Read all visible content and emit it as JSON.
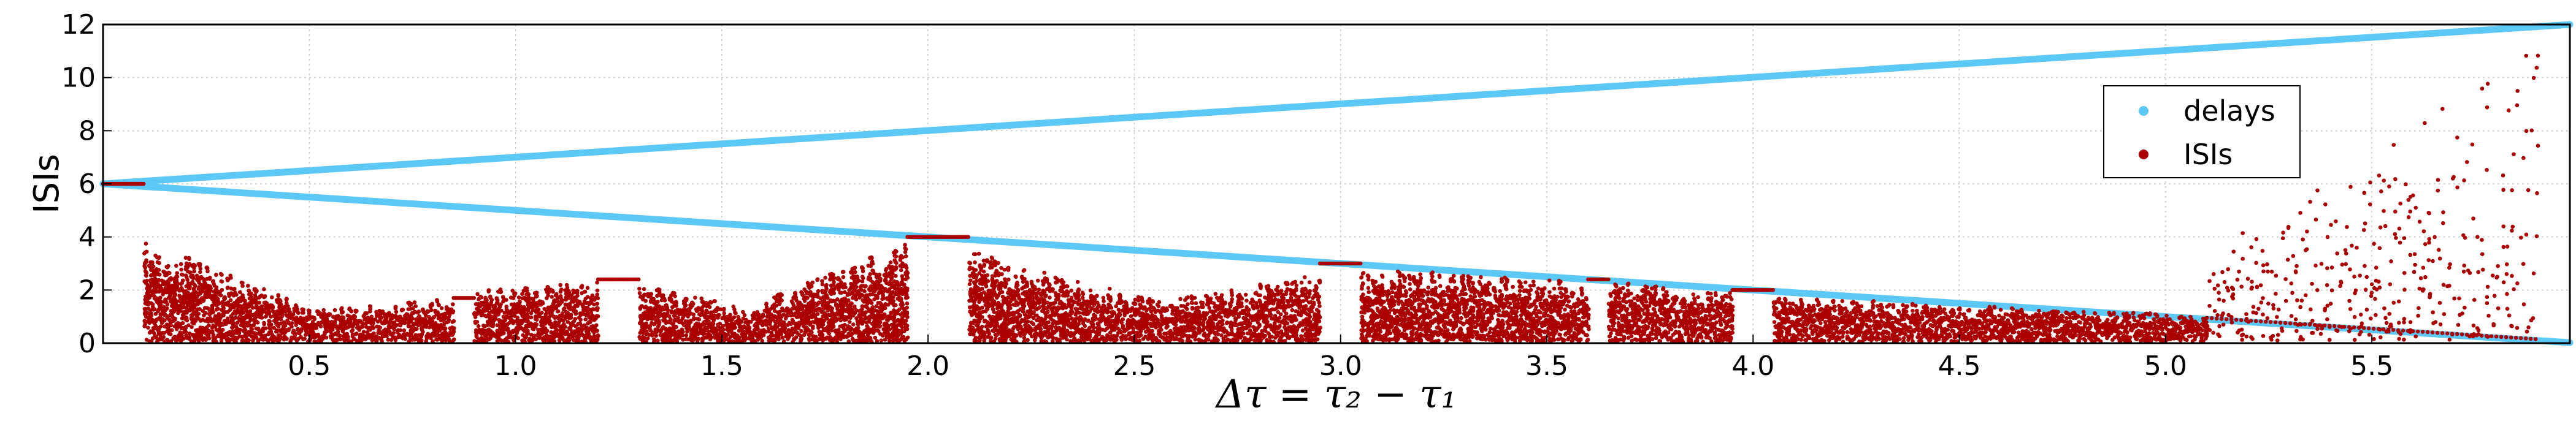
{
  "chart_data": {
    "type": "scatter",
    "xlabel": "Δτ = τ₂ − τ₁",
    "ylabel": "ISIs",
    "xlim": [
      0.0,
      5.98
    ],
    "ylim": [
      0,
      12
    ],
    "x_ticks": [
      "0.5",
      "1.0",
      "1.5",
      "2.0",
      "2.5",
      "3.0",
      "3.5",
      "4.0",
      "4.5",
      "5.0",
      "5.5"
    ],
    "y_ticks": [
      "0",
      "2",
      "4",
      "6",
      "8",
      "10",
      "12"
    ],
    "grid": true,
    "legend": {
      "placement": "upper right"
    },
    "series": [
      {
        "name": "delays",
        "color": "#5bc8f5",
        "marker": "circle",
        "lines": [
          {
            "x": [
              0.0,
              5.98
            ],
            "y": [
              6.0,
              12.0
            ]
          },
          {
            "x": [
              0.0,
              5.98
            ],
            "y": [
              6.0,
              0.02
            ]
          }
        ]
      },
      {
        "name": "ISIs",
        "color": "#aa0000",
        "marker": "circle",
        "regimes": [
          {
            "x": [
              0.0,
              0.1
            ],
            "kind": "flat",
            "y": 6.0
          },
          {
            "x": [
              0.1,
              0.5
            ],
            "kind": "band",
            "top": [
              4.0,
              1.3
            ]
          },
          {
            "x": [
              0.5,
              0.85
            ],
            "kind": "band",
            "top": [
              1.2,
              1.7
            ]
          },
          {
            "x": [
              0.85,
              0.9
            ],
            "kind": "flat",
            "y": 1.7
          },
          {
            "x": [
              0.9,
              1.2
            ],
            "kind": "band",
            "top": [
              2.0,
              2.3
            ]
          },
          {
            "x": [
              1.2,
              1.3
            ],
            "kind": "flat",
            "y": 2.4
          },
          {
            "x": [
              1.3,
              1.6
            ],
            "kind": "band",
            "top": [
              2.2,
              1.2
            ]
          },
          {
            "x": [
              1.6,
              1.95
            ],
            "kind": "band",
            "top": [
              1.6,
              3.8
            ]
          },
          {
            "x": [
              1.95,
              2.1
            ],
            "kind": "flat",
            "y": 4.0
          },
          {
            "x": [
              2.1,
              2.6
            ],
            "kind": "band",
            "top": [
              3.5,
              1.4
            ]
          },
          {
            "x": [
              2.6,
              2.95
            ],
            "kind": "band",
            "top": [
              1.7,
              2.6
            ]
          },
          {
            "x": [
              2.95,
              3.05
            ],
            "kind": "flat",
            "y": 3.0
          },
          {
            "x": [
              3.05,
              3.6
            ],
            "kind": "band",
            "top": [
              2.8,
              2.3
            ]
          },
          {
            "x": [
              3.6,
              3.65
            ],
            "kind": "flat",
            "y": 2.4
          },
          {
            "x": [
              3.65,
              3.95
            ],
            "kind": "band",
            "top": [
              2.3,
              1.9
            ]
          },
          {
            "x": [
              3.95,
              4.05
            ],
            "kind": "flat",
            "y": 2.0
          },
          {
            "x": [
              4.05,
              4.55
            ],
            "kind": "band",
            "top": [
              1.8,
              1.3
            ]
          },
          {
            "x": [
              4.55,
              5.1
            ],
            "kind": "band",
            "top": [
              1.4,
              1.0
            ]
          },
          {
            "x": [
              5.1,
              5.9
            ],
            "kind": "scatter",
            "top": [
              3.5,
              12.0
            ]
          }
        ]
      }
    ]
  }
}
